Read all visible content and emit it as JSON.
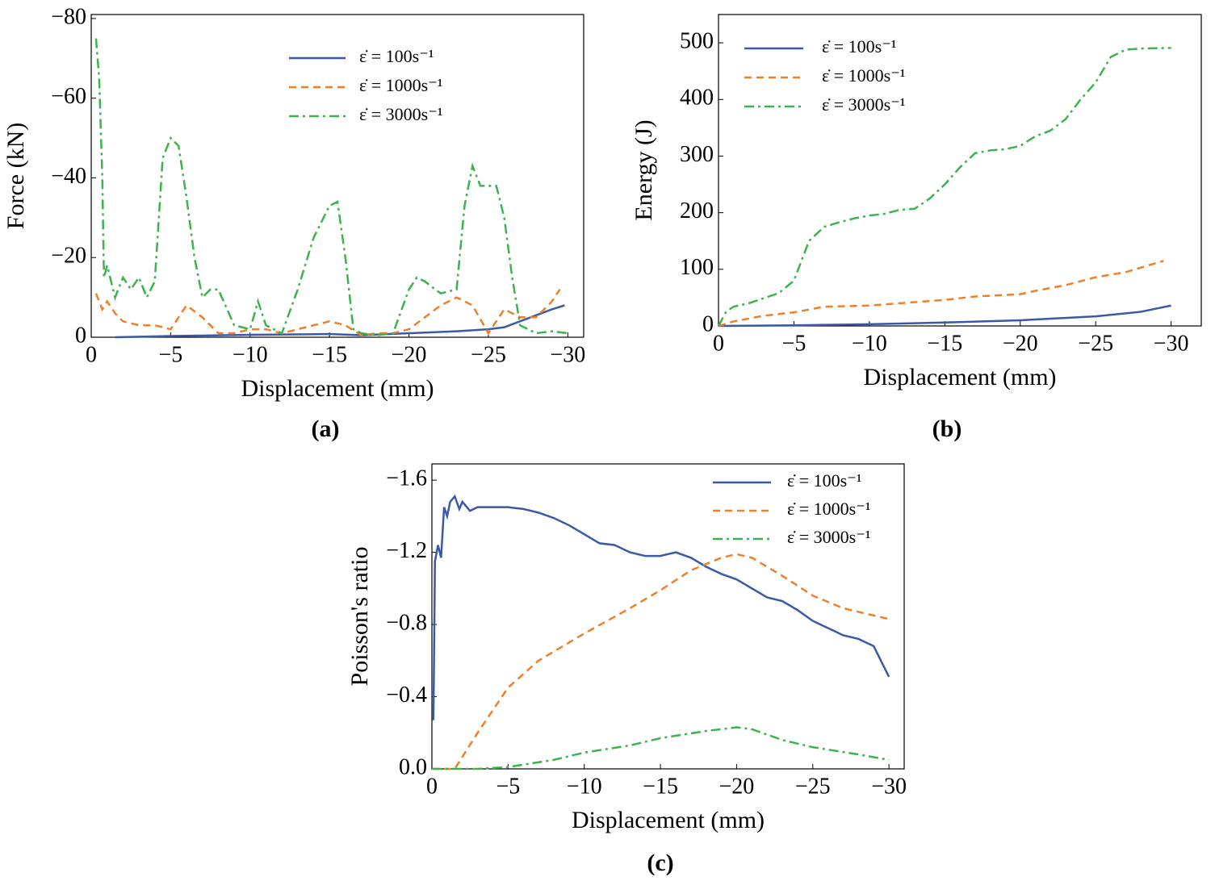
{
  "chart_data": [
    {
      "type": "line",
      "panel_label": "(a)",
      "xlabel": "Displacement (mm)",
      "ylabel": "Force (kN)",
      "xlim": [
        0,
        -31
      ],
      "xticks": [
        0,
        {
          "value": -5,
          "label": "−5"
        },
        {
          "value": -10,
          "label": "−10"
        },
        {
          "value": -15,
          "label": "−15"
        },
        {
          "value": -20,
          "label": "−20"
        },
        {
          "value": -25,
          "label": "−25"
        },
        {
          "value": -30,
          "label": "−30"
        }
      ],
      "ylim": [
        0,
        -81
      ],
      "yticks": [
        0,
        {
          "value": -20,
          "label": "−20"
        },
        {
          "value": -40,
          "label": "−40"
        },
        {
          "value": -60,
          "label": "−60"
        },
        {
          "value": -80,
          "label": "−80"
        }
      ],
      "series": [
        {
          "name": "ε̇ = 100s⁻¹",
          "color": "#3a5aa8",
          "dash": "solid",
          "x": [
            -1.5,
            -5,
            -10,
            -15,
            -17,
            -20,
            -23,
            -25,
            -26,
            -27,
            -28,
            -29,
            -29.8
          ],
          "values": [
            0,
            -0.3,
            -0.6,
            -0.8,
            -0.5,
            -1,
            -1.5,
            -2,
            -2.5,
            -4,
            -5.5,
            -7,
            -8
          ]
        },
        {
          "name": "ε̇ = 1000s⁻¹",
          "color": "#f07f2a",
          "dash": "dashed",
          "x": [
            -0.3,
            -0.7,
            -1,
            -1.5,
            -2,
            -3,
            -4,
            -5,
            -6,
            -7,
            -8,
            -9,
            -10,
            -11,
            -12,
            -13,
            -14,
            -15,
            -16,
            -17,
            -18,
            -19,
            -20,
            -21,
            -22,
            -23,
            -24,
            -25,
            -26,
            -27,
            -28,
            -29,
            -29.5
          ],
          "values": [
            -11,
            -7,
            -9,
            -6,
            -4,
            -3,
            -3,
            -2,
            -8,
            -5,
            -1,
            -1,
            -2,
            -2,
            -1,
            -2,
            -3,
            -4,
            -3,
            -0.5,
            -1,
            -1,
            -2,
            -5,
            -8,
            -10,
            -8,
            -1,
            -7,
            -5,
            -5,
            -9,
            -12
          ]
        },
        {
          "name": "ε̇ = 3000s⁻¹",
          "color": "#3cb44b",
          "dash": "dashdot",
          "x": [
            -0.3,
            -0.5,
            -0.7,
            -0.8,
            -1,
            -1.5,
            -2,
            -2.5,
            -3,
            -3.5,
            -4,
            -4.5,
            -5,
            -5.5,
            -6,
            -6.5,
            -7,
            -7.5,
            -8,
            -9,
            -10,
            -10.5,
            -11,
            -12,
            -13,
            -14,
            -15,
            -15.5,
            -16,
            -16.5,
            -17,
            -18,
            -19,
            -20,
            -20.5,
            -21,
            -22,
            -23,
            -23.5,
            -24,
            -24.5,
            -25.5,
            -26,
            -26.5,
            -27,
            -28,
            -29,
            -30
          ],
          "values": [
            -75,
            -65,
            -40,
            -15,
            -18,
            -10,
            -15,
            -12,
            -15,
            -10,
            -14,
            -45,
            -50,
            -48,
            -35,
            -20,
            -10,
            -12,
            -12,
            -3,
            -2,
            -9,
            -3,
            -1,
            -12,
            -25,
            -33,
            -34,
            -20,
            -2,
            -1,
            -0.5,
            -1,
            -12,
            -15,
            -14,
            -11,
            -12,
            -33,
            -43,
            -38,
            -38,
            -30,
            -15,
            -3,
            -1,
            -1.5,
            -1
          ]
        }
      ]
    },
    {
      "type": "line",
      "panel_label": "(b)",
      "xlabel": "Displacement (mm)",
      "ylabel": "Energy (J)",
      "xlim": [
        0,
        -32
      ],
      "xticks": [
        0,
        {
          "value": -5,
          "label": "−5"
        },
        {
          "value": -10,
          "label": "−10"
        },
        {
          "value": -15,
          "label": "−15"
        },
        {
          "value": -20,
          "label": "−20"
        },
        {
          "value": -25,
          "label": "−25"
        },
        {
          "value": -30,
          "label": "−30"
        }
      ],
      "ylim": [
        0,
        550
      ],
      "yticks": [
        0,
        100,
        200,
        300,
        400,
        500
      ],
      "series": [
        {
          "name": "ε̇ = 100s⁻¹",
          "color": "#3a5aa8",
          "dash": "solid",
          "x": [
            0,
            -5,
            -10,
            -15,
            -20,
            -25,
            -28,
            -30
          ],
          "values": [
            0,
            1,
            3,
            6,
            10,
            17,
            25,
            36
          ]
        },
        {
          "name": "ε̇ = 1000s⁻¹",
          "color": "#f07f2a",
          "dash": "dashed",
          "x": [
            0,
            -1,
            -3,
            -5,
            -7,
            -10,
            -13,
            -15,
            -17,
            -20,
            -21,
            -23,
            -25,
            -27,
            -29.5
          ],
          "values": [
            0,
            8,
            18,
            24,
            34,
            36,
            42,
            46,
            52,
            56,
            62,
            72,
            86,
            95,
            115
          ]
        },
        {
          "name": "ε̇ = 3000s⁻¹",
          "color": "#3cb44b",
          "dash": "dashdot",
          "x": [
            0,
            -0.5,
            -1,
            -2,
            -4,
            -5,
            -6,
            -7,
            -8,
            -9,
            -10,
            -11,
            -12,
            -13,
            -14,
            -15,
            -16,
            -17,
            -18,
            -19,
            -20,
            -21,
            -22,
            -23,
            -24,
            -25,
            -26,
            -27,
            -28,
            -30
          ],
          "values": [
            0,
            25,
            34,
            40,
            58,
            80,
            150,
            175,
            183,
            190,
            195,
            198,
            205,
            207,
            225,
            250,
            280,
            305,
            310,
            312,
            318,
            335,
            345,
            365,
            400,
            430,
            475,
            488,
            490,
            491
          ]
        }
      ]
    },
    {
      "type": "line",
      "panel_label": "(c)",
      "xlabel": "Displacement (mm)",
      "ylabel": "Poisson's ratio",
      "xlim": [
        0,
        -31
      ],
      "xticks": [
        0,
        {
          "value": -5,
          "label": "−5"
        },
        {
          "value": -10,
          "label": "−10"
        },
        {
          "value": -15,
          "label": "−15"
        },
        {
          "value": -20,
          "label": "−20"
        },
        {
          "value": -25,
          "label": "−25"
        },
        {
          "value": -30,
          "label": "−30"
        }
      ],
      "ylim": [
        0,
        -1.69
      ],
      "yticks": [
        {
          "value": 0,
          "label": "0.0"
        },
        {
          "value": -0.4,
          "label": "−0.4"
        },
        {
          "value": -0.8,
          "label": "−0.8"
        },
        {
          "value": -1.2,
          "label": "−1.2"
        },
        {
          "value": -1.6,
          "label": "−1.6"
        }
      ],
      "series": [
        {
          "name": "ε̇ = 100s⁻¹",
          "color": "#3a5aa8",
          "dash": "solid",
          "x": [
            -0.1,
            -0.2,
            -0.4,
            -0.6,
            -0.8,
            -1,
            -1.2,
            -1.5,
            -1.8,
            -2,
            -2.5,
            -3,
            -5,
            -6,
            -7,
            -8,
            -9,
            -10,
            -11,
            -12,
            -13,
            -14,
            -15,
            -15.5,
            -16,
            -17,
            -18,
            -19,
            -20,
            -21,
            -22,
            -23,
            -24,
            -25,
            -26,
            -27,
            -28,
            -29,
            -30
          ],
          "values": [
            -0.27,
            -1.15,
            -1.24,
            -1.17,
            -1.45,
            -1.4,
            -1.48,
            -1.51,
            -1.44,
            -1.48,
            -1.43,
            -1.45,
            -1.45,
            -1.44,
            -1.42,
            -1.39,
            -1.35,
            -1.3,
            -1.25,
            -1.24,
            -1.2,
            -1.18,
            -1.18,
            -1.19,
            -1.2,
            -1.17,
            -1.12,
            -1.08,
            -1.05,
            -1.0,
            -0.95,
            -0.93,
            -0.88,
            -0.82,
            -0.78,
            -0.74,
            -0.72,
            -0.68,
            -0.51
          ]
        },
        {
          "name": "ε̇ = 1000s⁻¹",
          "color": "#f07f2a",
          "dash": "dashed",
          "x": [
            0,
            -1.5,
            -3,
            -5,
            -7,
            -10,
            -13,
            -15,
            -17,
            -19,
            -20,
            -21,
            -23,
            -25,
            -27,
            -30
          ],
          "values": [
            0,
            0,
            -0.2,
            -0.45,
            -0.6,
            -0.75,
            -0.89,
            -0.99,
            -1.1,
            -1.17,
            -1.19,
            -1.17,
            -1.07,
            -0.96,
            -0.89,
            -0.83
          ]
        },
        {
          "name": "ε̇ = 3000s⁻¹",
          "color": "#3cb44b",
          "dash": "dashdot",
          "x": [
            0,
            -3,
            -5,
            -8,
            -10,
            -13,
            -15,
            -18,
            -20,
            -21,
            -23,
            -25,
            -28,
            -30
          ],
          "values": [
            0,
            0,
            -0.01,
            -0.05,
            -0.09,
            -0.13,
            -0.17,
            -0.21,
            -0.23,
            -0.22,
            -0.16,
            -0.12,
            -0.08,
            -0.05
          ]
        }
      ]
    }
  ]
}
